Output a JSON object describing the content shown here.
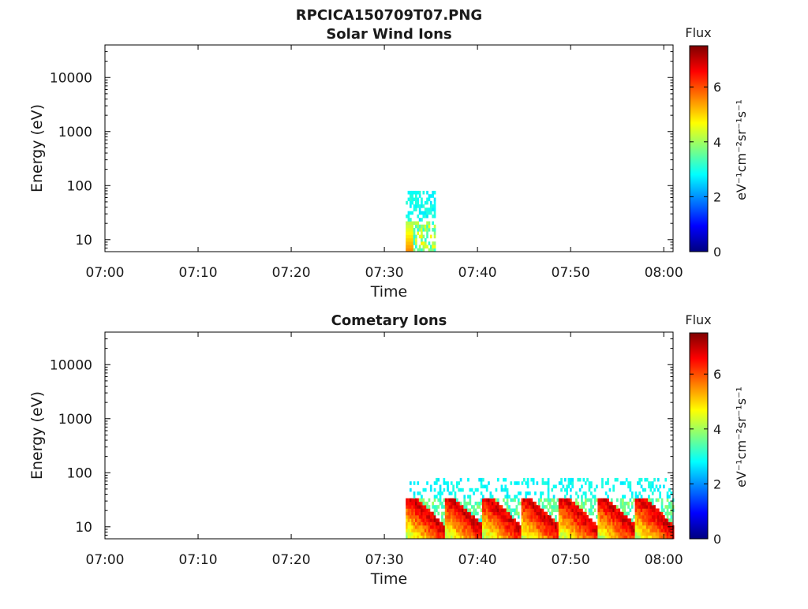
{
  "figure_title": "RPCICA150709T07.PNG",
  "colors": {
    "colormap": [
      "#00007f",
      "#0000ff",
      "#007fff",
      "#00ffff",
      "#7fff7f",
      "#ffff00",
      "#ff7f00",
      "#ff0000",
      "#7f0000"
    ]
  },
  "chart_data": [
    {
      "type": "heatmap",
      "title": "Solar Wind Ions",
      "xlabel": "Time",
      "ylabel": "Energy (eV)",
      "x_ticks": [
        "07:00",
        "07:10",
        "07:20",
        "07:30",
        "07:40",
        "07:50",
        "08:00"
      ],
      "x_range_min": [
        0,
        61
      ],
      "y_ticks": [
        "10",
        "100",
        "1000",
        "10000"
      ],
      "y_scale": "log",
      "y_range_eV": [
        6,
        40000
      ],
      "colorbar": {
        "title": "Flux",
        "label": "eV⁻¹cm⁻²sr⁻¹s⁻¹",
        "ticks": [
          "0",
          "2",
          "4",
          "6"
        ],
        "range": [
          0,
          7.5
        ]
      },
      "features": [
        {
          "t_start_min": 32.3,
          "t_end_min": 35.5,
          "e_low_eV": 6,
          "e_high_eV": 80,
          "flux_peak": 5.5,
          "flux_bg": 2.6
        }
      ]
    },
    {
      "type": "heatmap",
      "title": "Cometary Ions",
      "xlabel": "Time",
      "ylabel": "Energy (eV)",
      "x_ticks": [
        "07:00",
        "07:10",
        "07:20",
        "07:30",
        "07:40",
        "07:50",
        "08:00"
      ],
      "x_range_min": [
        0,
        61
      ],
      "y_ticks": [
        "10",
        "100",
        "1000",
        "10000"
      ],
      "y_scale": "log",
      "y_range_eV": [
        6,
        40000
      ],
      "colorbar": {
        "title": "Flux",
        "label": "eV⁻¹cm⁻²sr⁻¹s⁻¹",
        "ticks": [
          "0",
          "2",
          "4",
          "6"
        ],
        "range": [
          0,
          7.5
        ]
      },
      "features": [
        {
          "t_start_min": 32.3,
          "t_end_min": 61,
          "e_low_eV": 6,
          "e_high_eV": 80,
          "flux_peak": 7.3,
          "flux_bg": 2.6
        }
      ]
    }
  ]
}
